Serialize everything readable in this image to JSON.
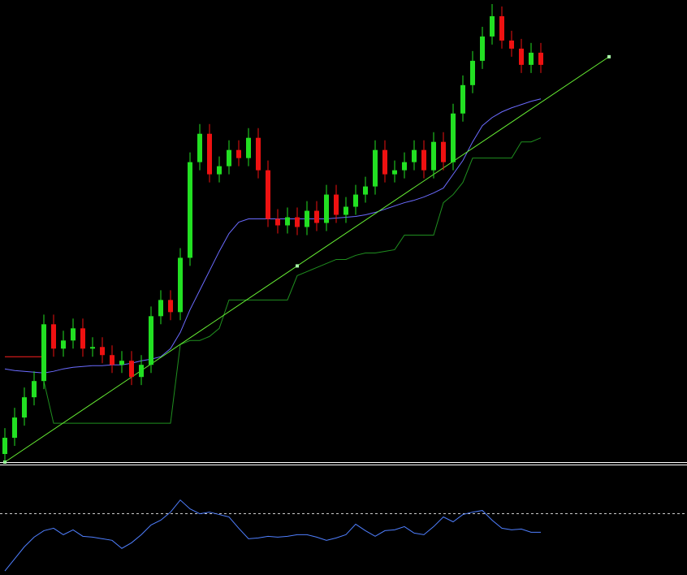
{
  "chart_data": [
    {
      "type": "candlestick",
      "x": [
        0,
        1,
        2,
        3,
        4,
        5,
        6,
        7,
        8,
        9,
        10,
        11,
        12,
        13,
        14,
        15,
        16,
        17,
        18,
        19,
        20,
        21,
        22,
        23,
        24,
        25,
        26,
        27,
        28,
        29,
        30,
        31,
        32,
        33,
        34,
        35,
        36,
        37,
        38,
        39,
        40,
        41,
        42,
        43,
        44,
        45,
        46,
        47,
        48,
        49,
        50,
        51,
        52,
        53,
        54,
        55
      ],
      "open": [
        10,
        30,
        55,
        80,
        100,
        170,
        140,
        150,
        165,
        140,
        142,
        132,
        120,
        125,
        105,
        120,
        180,
        200,
        185,
        252,
        370,
        405,
        355,
        365,
        385,
        375,
        400,
        360,
        300,
        292,
        302,
        290,
        310,
        295,
        330,
        305,
        315,
        330,
        340,
        385,
        355,
        360,
        370,
        385,
        360,
        395,
        370,
        430,
        465,
        495,
        525,
        550,
        520,
        510,
        490,
        505
      ],
      "high": [
        42,
        67,
        92,
        112,
        182,
        182,
        162,
        177,
        177,
        154,
        154,
        144,
        137,
        137,
        132,
        192,
        212,
        212,
        264,
        382,
        417,
        417,
        377,
        397,
        397,
        412,
        412,
        372,
        312,
        314,
        314,
        322,
        322,
        342,
        342,
        327,
        342,
        352,
        397,
        397,
        372,
        382,
        397,
        397,
        407,
        407,
        442,
        477,
        507,
        537,
        565,
        562,
        532,
        522,
        517,
        517
      ],
      "low": [
        0,
        20,
        45,
        70,
        90,
        130,
        130,
        140,
        130,
        130,
        122,
        110,
        110,
        95,
        95,
        110,
        170,
        175,
        175,
        242,
        360,
        345,
        345,
        355,
        365,
        365,
        350,
        290,
        282,
        282,
        280,
        280,
        285,
        285,
        295,
        295,
        305,
        320,
        330,
        345,
        345,
        350,
        360,
        350,
        350,
        360,
        360,
        420,
        455,
        485,
        515,
        510,
        500,
        480,
        480,
        480
      ],
      "close": [
        30,
        55,
        80,
        100,
        170,
        140,
        150,
        165,
        140,
        142,
        132,
        120,
        125,
        105,
        120,
        180,
        200,
        185,
        252,
        370,
        405,
        355,
        365,
        385,
        375,
        400,
        360,
        300,
        292,
        302,
        290,
        310,
        295,
        330,
        305,
        315,
        330,
        340,
        385,
        355,
        360,
        370,
        385,
        360,
        395,
        370,
        430,
        465,
        495,
        525,
        550,
        520,
        510,
        490,
        505,
        490
      ],
      "up_color": "#22e022",
      "down_color": "#ee1111",
      "series": [
        {
          "color": "#6b6bff",
          "values": [
            115,
            113,
            112,
            111,
            110,
            112,
            115,
            117,
            118,
            119,
            119,
            120,
            120,
            122,
            125,
            127,
            130,
            140,
            160,
            188,
            212,
            236,
            260,
            282,
            296,
            300,
            300,
            300,
            300,
            300,
            300,
            300,
            300,
            300,
            301,
            302,
            303,
            305,
            308,
            312,
            316,
            320,
            323,
            327,
            332,
            338,
            355,
            372,
            395,
            415,
            425,
            432,
            437,
            441,
            445,
            448
          ]
        },
        {
          "color": "#1f8f1f",
          "values": [
            null,
            null,
            null,
            null,
            100,
            48,
            48,
            48,
            48,
            48,
            48,
            48,
            48,
            48,
            48,
            48,
            48,
            48,
            145,
            150,
            150,
            155,
            165,
            200,
            200,
            200,
            200,
            200,
            200,
            200,
            230,
            235,
            240,
            245,
            250,
            250,
            255,
            258,
            258,
            260,
            262,
            280,
            280,
            280,
            280,
            320,
            330,
            345,
            375,
            375,
            375,
            375,
            375,
            395,
            395,
            400
          ]
        },
        {
          "color": "#ff2020",
          "values": [
            130,
            130,
            130,
            130,
            130,
            null,
            null,
            null,
            null,
            null,
            null,
            null,
            null,
            null,
            null,
            null,
            null,
            null,
            null,
            null,
            null,
            null,
            null,
            null,
            null,
            null,
            null,
            null,
            null,
            null,
            null,
            null,
            null,
            null,
            null,
            null,
            null,
            null,
            null,
            null,
            null,
            null,
            null,
            null,
            null,
            null,
            null,
            null,
            null,
            null,
            null,
            null,
            null,
            null,
            null,
            null
          ]
        }
      ],
      "trendline": {
        "x": [
          0,
          30,
          62
        ],
        "values": [
          0,
          242,
          500
        ],
        "color": "#66ee33"
      },
      "xlim": [
        -0.5,
        70
      ],
      "ylim": [
        0,
        570
      ]
    },
    {
      "type": "line",
      "x": [
        0,
        1,
        2,
        3,
        4,
        5,
        6,
        7,
        8,
        9,
        10,
        11,
        12,
        13,
        14,
        15,
        16,
        17,
        18,
        19,
        20,
        21,
        22,
        23,
        24,
        25,
        26,
        27,
        28,
        29,
        30,
        31,
        32,
        33,
        34,
        35,
        36,
        37,
        38,
        39,
        40,
        41,
        42,
        43,
        44,
        45,
        46,
        47,
        48,
        49,
        50,
        51,
        52,
        53,
        54,
        55
      ],
      "series": [
        {
          "color": "#4f7fff",
          "values": [
            5,
            20,
            35,
            47,
            55,
            58,
            50,
            56,
            48,
            47,
            45,
            43,
            33,
            40,
            50,
            62,
            68,
            78,
            93,
            82,
            76,
            78,
            75,
            72,
            58,
            45,
            46,
            48,
            47,
            48,
            50,
            50,
            47,
            43,
            46,
            50,
            63,
            55,
            48,
            55,
            56,
            60,
            52,
            50,
            60,
            72,
            66,
            75,
            78,
            80,
            68,
            58,
            56,
            57,
            53,
            53
          ]
        }
      ],
      "level": 76,
      "level_color": "#cccccc",
      "xlim": [
        -0.5,
        70
      ],
      "ylim": [
        0,
        136
      ]
    }
  ]
}
